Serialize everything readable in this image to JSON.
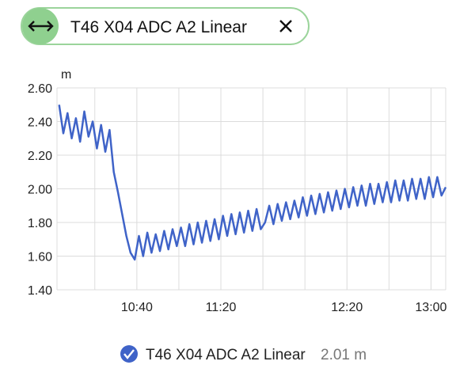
{
  "chart_data": {
    "type": "line",
    "title": "T46 X04 ADC A2 Linear",
    "y_label": "m",
    "x": [
      603,
      605,
      607,
      609,
      611,
      613,
      615,
      617,
      619,
      621,
      623,
      625,
      627,
      629,
      631,
      633,
      635,
      637,
      639,
      641,
      643,
      645,
      647,
      649,
      651,
      653,
      655,
      657,
      659,
      661,
      663,
      665,
      667,
      669,
      671,
      673,
      675,
      677,
      679,
      681,
      683,
      685,
      687,
      689,
      691,
      693,
      695,
      697,
      699,
      701,
      703,
      705,
      707,
      709,
      711,
      713,
      715,
      717,
      719,
      721,
      723,
      725,
      727,
      729,
      731,
      733,
      735,
      737,
      739,
      741,
      743,
      745,
      747,
      749,
      751,
      753,
      755,
      757,
      759,
      761,
      763,
      765,
      767,
      769,
      771,
      773,
      775,
      777,
      779,
      781,
      783,
      785,
      787
    ],
    "series": [
      {
        "name": "T46 X04 ADC A2 Linear",
        "color": "#3f63c8",
        "current": "2.01 m",
        "values": [
          2.5,
          2.33,
          2.45,
          2.3,
          2.42,
          2.28,
          2.46,
          2.31,
          2.4,
          2.24,
          2.38,
          2.22,
          2.35,
          2.1,
          1.98,
          1.85,
          1.72,
          1.62,
          1.58,
          1.72,
          1.6,
          1.74,
          1.62,
          1.73,
          1.63,
          1.75,
          1.64,
          1.76,
          1.66,
          1.77,
          1.66,
          1.79,
          1.67,
          1.8,
          1.68,
          1.81,
          1.69,
          1.82,
          1.7,
          1.84,
          1.72,
          1.85,
          1.73,
          1.86,
          1.74,
          1.87,
          1.75,
          1.88,
          1.76,
          1.8,
          1.9,
          1.79,
          1.91,
          1.81,
          1.92,
          1.82,
          1.93,
          1.83,
          1.95,
          1.84,
          1.96,
          1.85,
          1.97,
          1.86,
          1.98,
          1.87,
          1.99,
          1.88,
          2.0,
          1.89,
          2.01,
          1.9,
          2.02,
          1.9,
          2.03,
          1.91,
          2.03,
          1.92,
          2.04,
          1.92,
          2.05,
          1.93,
          2.05,
          1.93,
          2.06,
          1.94,
          2.06,
          1.94,
          2.07,
          1.95,
          2.07,
          1.96,
          2.01
        ]
      }
    ],
    "xlim": [
      602,
      787
    ],
    "xticks": [
      {
        "value": 620,
        "label": null
      },
      {
        "value": 640,
        "label": "10:40"
      },
      {
        "value": 660,
        "label": null
      },
      {
        "value": 680,
        "label": "11:20"
      },
      {
        "value": 700,
        "label": null
      },
      {
        "value": 720,
        "label": null
      },
      {
        "value": 740,
        "label": "12:20"
      },
      {
        "value": 760,
        "label": null
      },
      {
        "value": 780,
        "label": "13:00"
      }
    ],
    "ylim": [
      1.4,
      2.6
    ],
    "yticks": [
      {
        "value": 1.4,
        "label": "1.40"
      },
      {
        "value": 1.6,
        "label": "1.60"
      },
      {
        "value": 1.8,
        "label": "1.80"
      },
      {
        "value": 2.0,
        "label": "2.00"
      },
      {
        "value": 2.2,
        "label": "2.20"
      },
      {
        "value": 2.4,
        "label": "2.40"
      },
      {
        "value": 2.6,
        "label": "2.60"
      }
    ],
    "grid": true
  }
}
